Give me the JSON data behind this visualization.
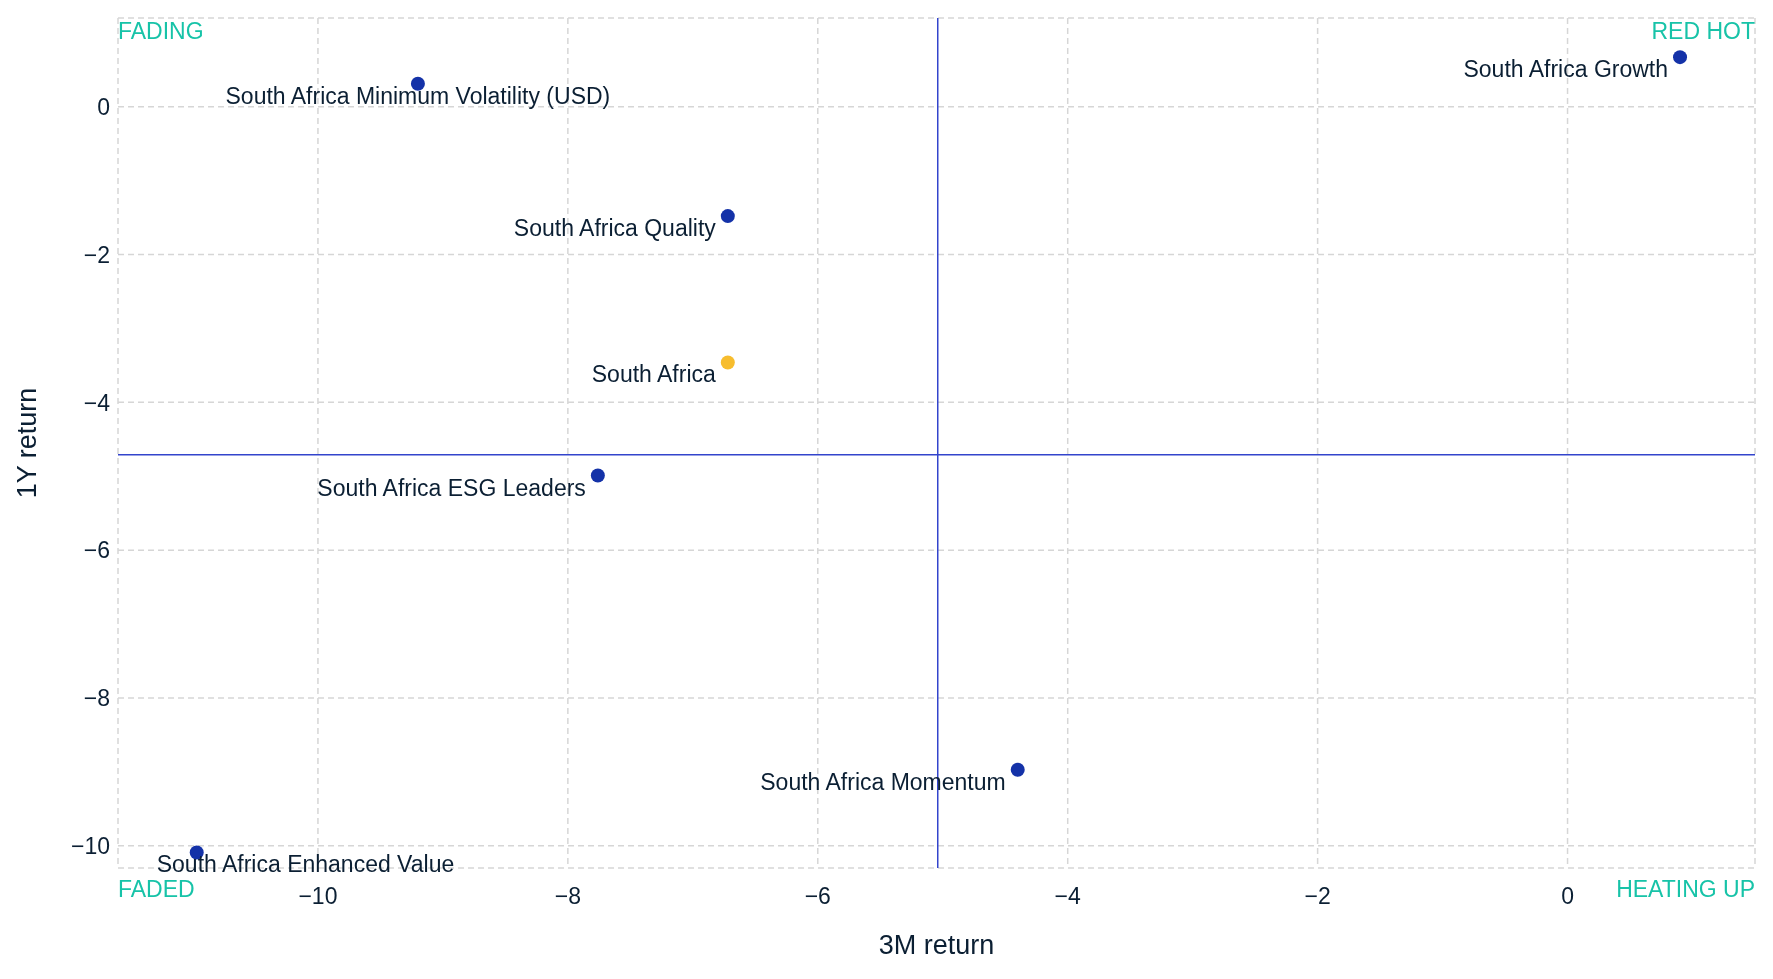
{
  "chart_data": {
    "type": "scatter",
    "xlabel": "3M return",
    "ylabel": "1Y return",
    "xlim": [
      -11.6,
      1.5
    ],
    "ylim": [
      -10.3,
      1.2
    ],
    "xticks": [
      {
        "value": -10,
        "label": "−10"
      },
      {
        "value": -8,
        "label": "−8"
      },
      {
        "value": -6,
        "label": "−6"
      },
      {
        "value": -4,
        "label": "−4"
      },
      {
        "value": -2,
        "label": "−2"
      },
      0
    ],
    "yticks": [
      {
        "value": -10,
        "label": "−10"
      },
      {
        "value": -8,
        "label": "−8"
      },
      {
        "value": -6,
        "label": "−6"
      },
      {
        "value": -4,
        "label": "−4"
      },
      {
        "value": -2,
        "label": "−2"
      },
      0
    ],
    "grid": true,
    "legend": false,
    "marker": "circle",
    "series": [
      {
        "name": "South Africa Minimum Volatility (USD)",
        "color": "#1432a8",
        "x": [
          -9.2
        ],
        "values": [
          0.31
        ]
      },
      {
        "name": "South Africa Growth",
        "color": "#1432a8",
        "x": [
          0.9
        ],
        "values": [
          0.67
        ]
      },
      {
        "name": "South Africa Quality",
        "color": "#1432a8",
        "x": [
          -6.72
        ],
        "values": [
          -1.48
        ]
      },
      {
        "name": "South Africa",
        "color": "#f7bd2e",
        "x": [
          -6.72
        ],
        "values": [
          -3.46
        ]
      },
      {
        "name": "South Africa ESG Leaders",
        "color": "#1432a8",
        "x": [
          -7.76
        ],
        "values": [
          -4.99
        ]
      },
      {
        "name": "South Africa Momentum",
        "color": "#1432a8",
        "x": [
          -4.4
        ],
        "values": [
          -8.97
        ]
      },
      {
        "name": "South Africa Enhanced Value",
        "color": "#1432a8",
        "x": [
          -10.97
        ],
        "values": [
          -10.09
        ]
      }
    ],
    "ref_lines": [
      {
        "axis": "x",
        "value": -5.04,
        "color": "#3344cc"
      },
      {
        "axis": "y",
        "value": -4.71,
        "color": "#3344cc"
      }
    ],
    "annotations": [
      "FADING",
      "RED HOT",
      "FADED",
      "HEATING UP"
    ]
  }
}
